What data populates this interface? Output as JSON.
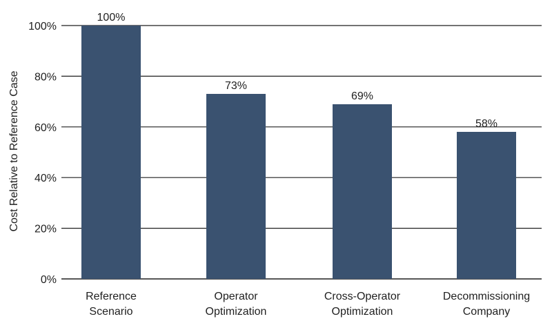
{
  "chart_data": {
    "type": "bar",
    "title": "",
    "xlabel": "",
    "ylabel": "Cost Relative to Reference Case",
    "categories": [
      [
        "Reference",
        "Scenario"
      ],
      [
        "Operator",
        "Optimization"
      ],
      [
        "Cross-Operator",
        "Optimization"
      ],
      [
        "Decommissioning",
        "Company"
      ]
    ],
    "values": [
      100,
      73,
      69,
      58
    ],
    "data_labels": [
      "100%",
      "73%",
      "69%",
      "58%"
    ],
    "ylim": [
      0,
      100
    ],
    "yticks": [
      0,
      20,
      40,
      60,
      80,
      100
    ],
    "ytick_labels": [
      "0%",
      "20%",
      "40%",
      "60%",
      "80%",
      "100%"
    ],
    "grid": true,
    "bar_color": "#3a5270"
  }
}
